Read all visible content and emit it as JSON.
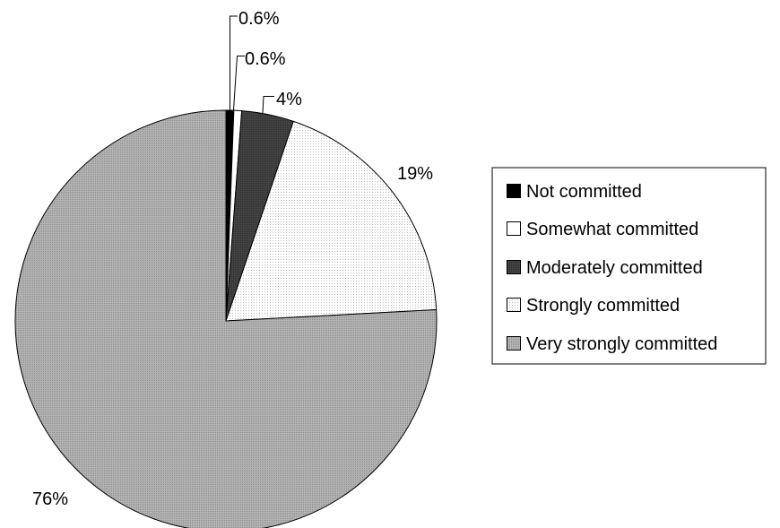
{
  "chart_data": {
    "type": "pie",
    "categories": [
      "Not committed",
      "Somewhat committed",
      "Moderately committed",
      "Strongly committed",
      "Very strongly committed"
    ],
    "values": [
      0.6,
      0.6,
      4,
      19,
      76
    ],
    "labels": [
      "0.6%",
      "0.6%",
      "4%",
      "19%",
      "76%"
    ],
    "colors": [
      "#000000",
      "#ffffff",
      "#404040",
      "#f2f2f2",
      "#a6a6a6"
    ],
    "start_angle": "12 o'clock",
    "direction": "clockwise",
    "legend": "right"
  }
}
